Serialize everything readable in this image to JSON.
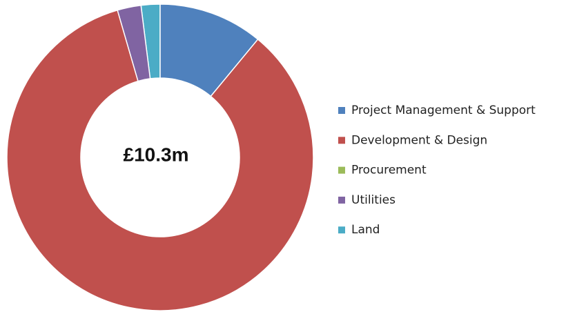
{
  "chart_data": {
    "type": "donut",
    "center_label": "£10.3m",
    "categories": [
      "Project Management & Support",
      "Development & Design",
      "Procurement",
      "Utilities",
      "Land"
    ],
    "values": [
      11,
      84.5,
      0,
      2.5,
      2
    ],
    "colors": [
      "#4f81bd",
      "#c0504d",
      "#9bbb59",
      "#8064a2",
      "#4bacc6"
    ],
    "legend": "right"
  }
}
